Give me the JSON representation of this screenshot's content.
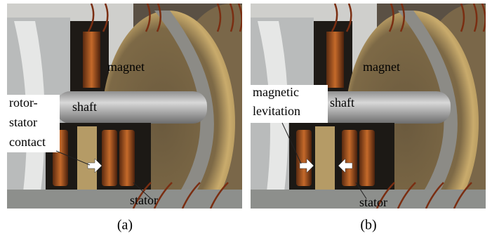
{
  "panels": [
    {
      "caption": "(a)",
      "magnet": "magnet",
      "shaft": "shaft",
      "note": [
        "rotor-",
        "stator",
        "contact"
      ],
      "stator": "stator"
    },
    {
      "caption": "(b)",
      "magnet": "magnet",
      "shaft": "shaft",
      "note": [
        "magnetic",
        "levitation"
      ],
      "stator": "stator"
    }
  ]
}
